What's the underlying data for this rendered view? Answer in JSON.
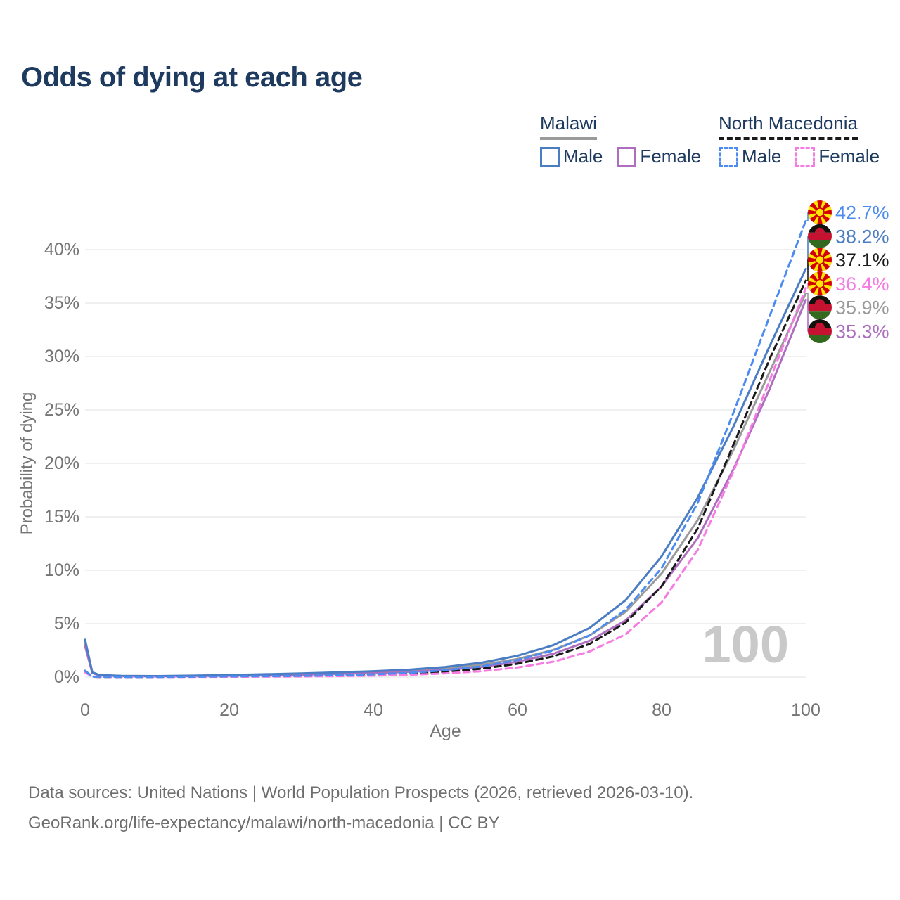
{
  "title": "Odds of dying at each age",
  "colors": {
    "title_text": "#1e3a5f",
    "legend_text": "#1e3a5f",
    "axis_text": "#757575",
    "gridline": "#e8e8e8",
    "watermark": "#c9c9c9",
    "footer_text": "#6e6e6e",
    "malawi_male": "#4a7dc3",
    "malawi_female": "#ae6ec0",
    "malawi_both": "#9a9a9a",
    "north_macedonia_male": "#4c8bf0",
    "north_macedonia_female": "#f57be2",
    "north_macedonia_both": "#1a1a1a"
  },
  "legend": {
    "groups": [
      {
        "label": "Malawi",
        "underline_color": "#9a9a9a",
        "underline_style": "solid",
        "items": [
          {
            "label": "Male",
            "color": "#4a7dc3",
            "dash": false
          },
          {
            "label": "Female",
            "color": "#ae6ec0",
            "dash": false
          }
        ]
      },
      {
        "label": "North Macedonia",
        "underline_color": "#1a1a1a",
        "underline_style": "dashed",
        "items": [
          {
            "label": "Male",
            "color": "#4c8bf0",
            "dash": true
          },
          {
            "label": "Female",
            "color": "#f57be2",
            "dash": true
          }
        ]
      }
    ]
  },
  "watermark": "100",
  "chart_data": {
    "type": "line",
    "title": "Odds of dying at each age",
    "xlabel": "Age",
    "ylabel": "Probability of dying",
    "xlim": [
      0,
      100
    ],
    "ylim": [
      0,
      43
    ],
    "x_ticks": [
      0,
      20,
      40,
      60,
      80,
      100
    ],
    "x_tick_labels": [
      "0",
      "20",
      "40",
      "60",
      "80",
      "100"
    ],
    "y_ticks": [
      0,
      5,
      10,
      15,
      20,
      25,
      30,
      35,
      40
    ],
    "y_tick_labels": [
      "0%",
      "5%",
      "10%",
      "15%",
      "20%",
      "25%",
      "30%",
      "35%",
      "40%"
    ],
    "grid": true,
    "legend_position": "top-right",
    "x": [
      0,
      1,
      2,
      5,
      10,
      15,
      20,
      25,
      30,
      35,
      40,
      45,
      50,
      55,
      60,
      65,
      70,
      75,
      80,
      85,
      90,
      95,
      100
    ],
    "series": [
      {
        "name": "Malawi Both sexes",
        "country": "Malawi",
        "flag": "malawi",
        "sex": "both",
        "color": "#9a9a9a",
        "dash": false,
        "end_label": "35.9%",
        "values": [
          3.2,
          0.4,
          0.18,
          0.11,
          0.09,
          0.12,
          0.17,
          0.22,
          0.29,
          0.37,
          0.46,
          0.6,
          0.8,
          1.15,
          1.7,
          2.55,
          3.9,
          6.1,
          9.7,
          14.7,
          21.3,
          28.6,
          35.9
        ]
      },
      {
        "name": "Malawi Female",
        "country": "Malawi",
        "flag": "malawi",
        "sex": "female",
        "color": "#ae6ec0",
        "dash": false,
        "end_label": "35.3%",
        "values": [
          2.9,
          0.38,
          0.16,
          0.1,
          0.08,
          0.1,
          0.14,
          0.18,
          0.23,
          0.3,
          0.38,
          0.5,
          0.68,
          0.95,
          1.45,
          2.2,
          3.4,
          5.3,
          8.5,
          13.0,
          19.5,
          27.0,
          35.3
        ]
      },
      {
        "name": "Malawi Male",
        "country": "Malawi",
        "flag": "malawi",
        "sex": "male",
        "color": "#4a7dc3",
        "dash": false,
        "end_label": "38.2%",
        "values": [
          3.5,
          0.45,
          0.2,
          0.12,
          0.1,
          0.14,
          0.2,
          0.27,
          0.35,
          0.45,
          0.55,
          0.7,
          0.95,
          1.35,
          2.0,
          3.0,
          4.6,
          7.2,
          11.3,
          16.8,
          23.5,
          31.0,
          38.2
        ]
      },
      {
        "name": "North Macedonia Both sexes",
        "country": "North Macedonia",
        "flag": "north-macedonia",
        "sex": "both",
        "color": "#1a1a1a",
        "dash": true,
        "end_label": "37.1%",
        "values": [
          0.5,
          0.04,
          0.02,
          0.02,
          0.02,
          0.03,
          0.05,
          0.07,
          0.09,
          0.13,
          0.2,
          0.31,
          0.5,
          0.78,
          1.25,
          1.95,
          3.1,
          5.1,
          8.5,
          13.9,
          21.8,
          29.8,
          37.1
        ]
      },
      {
        "name": "North Macedonia Female",
        "country": "North Macedonia",
        "flag": "north-macedonia",
        "sex": "female",
        "color": "#f57be2",
        "dash": true,
        "end_label": "36.4%",
        "values": [
          0.45,
          0.04,
          0.02,
          0.01,
          0.01,
          0.02,
          0.03,
          0.04,
          0.06,
          0.09,
          0.14,
          0.22,
          0.35,
          0.55,
          0.9,
          1.45,
          2.4,
          4.0,
          7.0,
          11.9,
          19.3,
          27.8,
          36.4
        ]
      },
      {
        "name": "North Macedonia Male",
        "country": "North Macedonia",
        "flag": "north-macedonia",
        "sex": "male",
        "color": "#4c8bf0",
        "dash": true,
        "end_label": "42.7%",
        "values": [
          0.6,
          0.05,
          0.03,
          0.02,
          0.02,
          0.04,
          0.07,
          0.09,
          0.12,
          0.17,
          0.26,
          0.4,
          0.65,
          1.0,
          1.6,
          2.5,
          3.9,
          6.3,
          10.2,
          16.3,
          24.8,
          33.8,
          42.7
        ]
      }
    ]
  },
  "footer": {
    "line1": "Data sources: United Nations | World Population Prospects (2026, retrieved 2026-03-10).",
    "line2": "GeoRank.org/life-expectancy/malawi/north-macedonia | CC BY"
  }
}
